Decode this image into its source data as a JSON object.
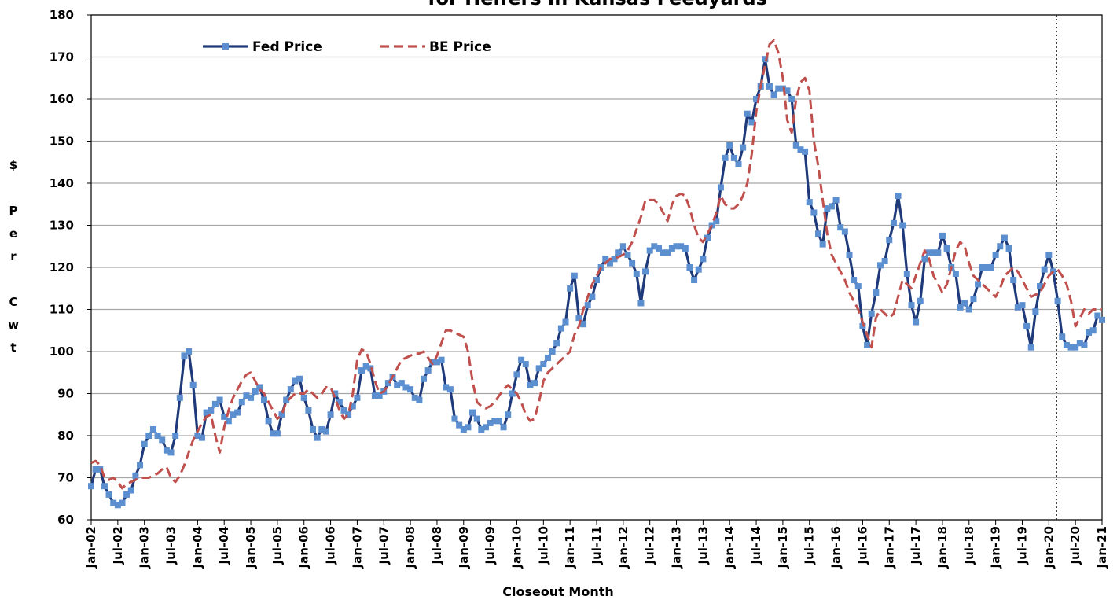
{
  "chart_data": {
    "type": "line",
    "title": "for Heifers in Kansas Feedyards",
    "xlabel": "Closeout Month",
    "ylabel": "$ Per Cwt",
    "categories": [
      "Jan-02",
      null,
      null,
      null,
      null,
      null,
      "Jul-02",
      null,
      null,
      null,
      null,
      null,
      "Jan-03",
      null,
      null,
      null,
      null,
      null,
      "Jul-03",
      null,
      null,
      null,
      null,
      null,
      "Jan-04",
      null,
      null,
      null,
      null,
      null,
      "Jul-04",
      null,
      null,
      null,
      null,
      null,
      "Jan-05",
      null,
      null,
      null,
      null,
      null,
      "Jul-05",
      null,
      null,
      null,
      null,
      null,
      "Jan-06",
      null,
      null,
      null,
      null,
      null,
      "Jul-06",
      null,
      null,
      null,
      null,
      null,
      "Jan-07",
      null,
      null,
      null,
      null,
      null,
      "Jul-07",
      null,
      null,
      null,
      null,
      null,
      "Jan-08",
      null,
      null,
      null,
      null,
      null,
      "Jul-08",
      null,
      null,
      null,
      null,
      null,
      "Jan-09",
      null,
      null,
      null,
      null,
      null,
      "Jul-09",
      null,
      null,
      null,
      null,
      null,
      "Jan-10",
      null,
      null,
      null,
      null,
      null,
      "Jul-10",
      null,
      null,
      null,
      null,
      null,
      "Jan-11",
      null,
      null,
      null,
      null,
      null,
      "Jul-11",
      null,
      null,
      null,
      null,
      null,
      "Jan-12",
      null,
      null,
      null,
      null,
      null,
      "Jul-12",
      null,
      null,
      null,
      null,
      null,
      "Jan-13",
      null,
      null,
      null,
      null,
      null,
      "Jul-13",
      null,
      null,
      null,
      null,
      null,
      "Jan-14",
      null,
      null,
      null,
      null,
      null,
      "Jul-14",
      null,
      null,
      null,
      null,
      null,
      "Jan-15",
      null,
      null,
      null,
      null,
      null,
      "Jul-15",
      null,
      null,
      null,
      null,
      null,
      "Jan-16",
      null,
      null,
      null,
      null,
      null,
      "Jul-16",
      null,
      null,
      null,
      null,
      null,
      "Jan-17",
      null,
      null,
      null,
      null,
      null,
      "Jul-17",
      null,
      null,
      null,
      null,
      null,
      "Jan-18",
      null,
      null,
      null,
      null,
      null,
      "Jul-18",
      null,
      null,
      null,
      null,
      null,
      "Jan-19",
      null,
      null,
      null,
      null,
      null,
      "Jul-19",
      null,
      null,
      null,
      null,
      null,
      "Jan-20",
      null,
      null,
      null,
      null,
      null,
      "Jul-20",
      null,
      null,
      null,
      null,
      null,
      "Jan-21"
    ],
    "series": [
      {
        "name": "Fed Price",
        "color": "#1f3a7a",
        "marker_color": "#5b8fd0",
        "dash": false,
        "values": [
          68,
          72,
          72,
          68,
          66,
          64,
          63.5,
          64,
          66,
          67,
          70.5,
          73,
          78,
          80,
          81.5,
          80,
          79,
          76.5,
          76,
          80,
          89,
          99,
          100,
          92,
          80,
          79.5,
          85.5,
          86,
          87.5,
          88.5,
          84.5,
          83.5,
          85,
          85.5,
          88,
          89.5,
          89,
          90.5,
          91.5,
          88.5,
          83.5,
          80.5,
          80.5,
          85,
          88.5,
          91,
          93,
          93.5,
          89,
          86,
          81.5,
          79.5,
          81.5,
          81,
          85,
          90,
          88,
          86,
          85,
          87,
          89,
          95.5,
          96.5,
          96,
          89.5,
          89.5,
          90.5,
          92.5,
          94,
          92,
          92.5,
          91.5,
          91,
          89,
          88.5,
          93.5,
          95.5,
          97.5,
          97.5,
          98,
          91.5,
          91,
          84,
          82.5,
          81.5,
          82,
          85.5,
          84,
          81.5,
          82,
          83,
          83.5,
          83.5,
          82,
          85,
          90,
          94.5,
          98,
          97,
          92,
          92.5,
          96,
          97,
          98.5,
          100,
          102,
          105.5,
          107,
          115,
          118,
          108,
          106.5,
          111,
          113,
          117,
          120,
          122,
          121,
          122,
          123.5,
          125,
          123,
          121,
          118.5,
          111.5,
          119,
          124,
          125,
          124.5,
          123.5,
          123.5,
          124.5,
          125,
          125,
          124.5,
          120,
          117,
          119.5,
          122,
          127,
          130,
          131,
          139,
          146,
          149,
          146,
          144.5,
          148.5,
          156.5,
          154.5,
          160,
          163,
          169.5,
          163,
          161,
          162.5,
          162.5,
          162,
          160,
          149,
          148,
          147.5,
          135.5,
          133,
          128,
          125.5,
          134,
          134.5,
          136,
          129.5,
          128.5,
          123,
          117,
          115.5,
          106,
          101.5,
          109,
          114,
          120.5,
          121.5,
          126.5,
          130.5,
          137,
          130,
          118.5,
          111,
          107,
          112,
          122,
          123.5,
          123.5,
          123.5,
          127.5,
          124.5,
          120,
          118.5,
          110.5,
          111.5,
          110,
          112.5,
          116,
          120,
          120,
          120,
          123,
          125,
          127,
          124.5,
          117,
          110.5,
          111,
          106,
          101,
          109.5,
          115.5,
          119.5,
          123,
          119,
          112,
          103.5,
          101.5,
          101,
          101,
          102,
          101.5,
          104.5,
          105,
          108.5,
          107.5
        ]
      },
      {
        "name": "BE Price",
        "color": "#c0504d",
        "dash": true,
        "values": [
          73.5,
          74,
          73,
          70,
          69.5,
          70,
          69,
          67.5,
          68.5,
          69,
          69.5,
          70,
          70,
          70,
          70.5,
          71,
          72,
          72.5,
          70,
          69,
          70.5,
          73,
          76,
          79,
          81,
          83,
          84.5,
          85,
          80,
          76,
          82,
          86,
          89,
          91,
          93,
          94.5,
          95,
          93,
          91,
          90,
          88,
          86,
          84,
          85,
          88,
          89,
          90,
          90,
          90,
          91,
          90,
          89,
          90,
          91.5,
          91.5,
          89,
          86,
          84,
          85,
          90,
          98,
          100.5,
          100,
          97,
          93,
          90,
          90.5,
          92,
          94,
          96,
          98,
          98.5,
          99,
          99.5,
          99.5,
          100,
          98.5,
          97,
          99,
          102,
          105,
          105,
          104.5,
          104,
          103.5,
          100,
          93,
          88,
          87,
          86.5,
          87,
          88,
          89.5,
          91,
          92,
          91,
          90,
          88,
          85,
          83.5,
          84,
          88,
          93,
          95,
          96,
          97,
          98,
          99,
          100,
          104,
          106,
          110,
          113,
          116,
          118,
          120,
          121,
          122,
          122,
          122.5,
          123,
          124,
          126,
          129,
          132,
          136,
          136,
          136,
          135,
          133,
          131,
          135,
          137,
          137.5,
          137,
          134,
          130,
          127,
          126,
          128,
          130,
          133,
          137,
          135,
          134,
          134,
          135,
          137,
          140,
          147,
          157,
          163,
          168,
          173,
          174,
          171,
          165,
          155,
          152,
          160,
          164,
          165,
          162,
          150,
          144,
          136,
          128,
          123,
          121,
          119,
          117,
          114,
          112,
          110,
          107,
          104,
          101,
          108,
          110,
          109,
          108,
          109,
          113,
          117,
          116,
          115,
          118,
          121,
          124,
          122,
          118,
          116,
          114,
          116,
          120,
          124,
          126,
          125,
          121,
          118,
          117,
          116,
          115,
          114,
          113,
          115,
          118,
          119,
          120,
          119,
          117,
          115,
          113,
          113.5,
          114,
          116,
          118,
          119,
          119.5,
          118,
          116,
          112,
          106,
          108,
          110,
          109,
          110,
          110,
          110
        ]
      }
    ],
    "ylim": [
      60,
      180
    ],
    "yticks": [
      60,
      70,
      80,
      90,
      100,
      110,
      120,
      130,
      140,
      150,
      160,
      170,
      180
    ],
    "grid": true,
    "legend": "top-left"
  }
}
